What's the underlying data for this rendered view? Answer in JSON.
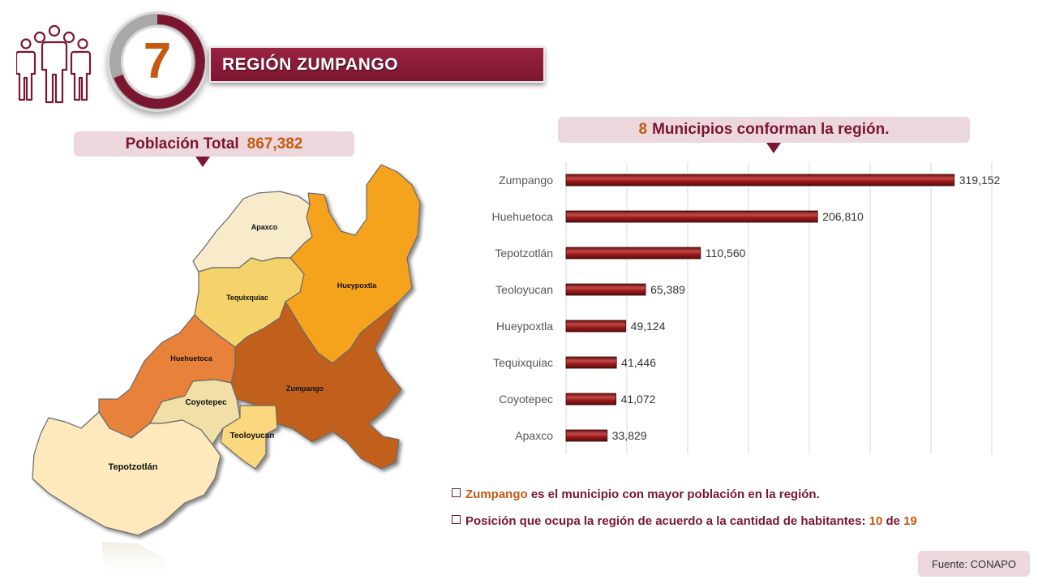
{
  "header": {
    "region_number": "7",
    "region_title": "REGIÓN ZUMPANGO"
  },
  "population": {
    "label": "Población Total",
    "value": "867,382"
  },
  "municipios": {
    "count": "8",
    "text": "Municipios conforman la región."
  },
  "map": {
    "labels": [
      "Apaxco",
      "Hueypoxtla",
      "Tequixquiac",
      "Huehuetoca",
      "Zumpango",
      "Coyotepec",
      "Teoloyucan",
      "Tepotzotlán"
    ]
  },
  "chart_data": {
    "type": "bar",
    "orientation": "horizontal",
    "categories": [
      "Zumpango",
      "Huehuetoca",
      "Tepotzotlán",
      "Teoloyucan",
      "Hueypoxtla",
      "Tequixquiac",
      "Coyotepec",
      "Apaxco"
    ],
    "values": [
      319152,
      206810,
      110560,
      65389,
      49124,
      41446,
      41072,
      33829
    ],
    "value_labels": [
      "319,152",
      "206,810",
      "110,560",
      "65,389",
      "49,124",
      "41,446",
      "41,072",
      "33,829"
    ],
    "xlim": [
      0,
      350000
    ],
    "grid": true,
    "bar_color": "#8b1a1a"
  },
  "notes": {
    "note1_highlight": "Zumpango",
    "note1_rest": "es el municipio con mayor población en la región.",
    "note2_text": "Posición que ocupa la región de acuerdo a la cantidad de habitantes:",
    "note2_position": "10",
    "note2_de": "de",
    "note2_total": "19"
  },
  "source": "Fuente: CONAPO",
  "colors": {
    "primary": "#7a1630",
    "accent": "#c55a11",
    "pill": "#ecd8dc"
  },
  "icons": {
    "people": "people-group-icon"
  }
}
